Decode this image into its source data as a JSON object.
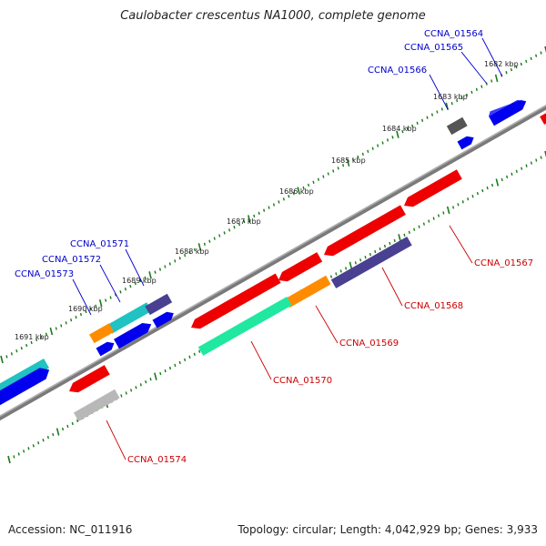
{
  "title": "Caulobacter crescentus NA1000, complete genome",
  "footer": {
    "accession": "Accession: NC_011916",
    "stats": "Topology: circular; Length: 4,042,929 bp; Genes: 3,933"
  },
  "ruler_labels": [
    "1682 kbp",
    "1683 kbp",
    "1684 kbp",
    "1685 kbp",
    "1686 kbp",
    "1687 kbp",
    "1688 kbp",
    "1689 kbp",
    "1690 kbp",
    "1691 kbp"
  ],
  "gene_labels": {
    "forward": [
      "CCNA_01564",
      "CCNA_01565",
      "CCNA_01566",
      "CCNA_01571",
      "CCNA_01572",
      "CCNA_01573"
    ],
    "reverse": [
      "CCNA_01567",
      "CCNA_01568",
      "CCNA_01569",
      "CCNA_01570",
      "CCNA_01574"
    ]
  },
  "colors": {
    "forward_label": "#0000cc",
    "reverse_label": "#cc0000",
    "backbone": "#8a8a8a",
    "ticks": "#1a7a1a"
  }
}
